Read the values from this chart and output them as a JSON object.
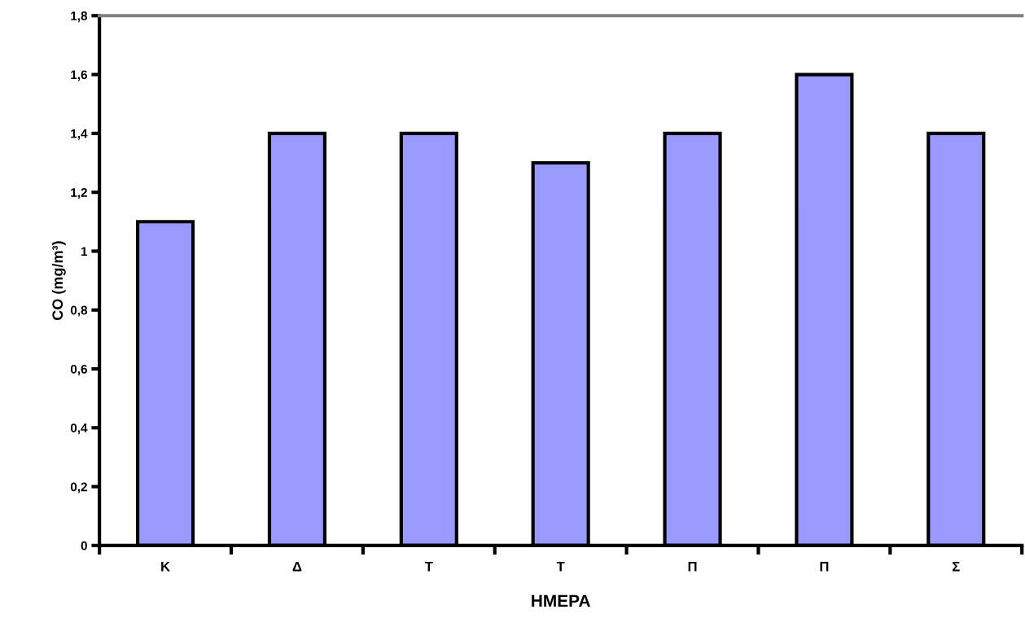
{
  "chart_data": {
    "type": "bar",
    "xlabel": "ΗΜΕΡΑ",
    "ylabel": "CO (mg/m³)",
    "categories": [
      "Κ",
      "Δ",
      "Τ",
      "Τ",
      "Π",
      "Π",
      "Σ"
    ],
    "values": [
      1.1,
      1.4,
      1.4,
      1.3,
      1.4,
      1.6,
      1.4
    ],
    "color": "#9999ff",
    "ylim": [
      0,
      1.8
    ],
    "yticks": [
      0,
      {
        "value": 0.2,
        "label": "0,2"
      },
      {
        "value": 0.4,
        "label": "0,4"
      },
      {
        "value": 0.6,
        "label": "0,6"
      },
      {
        "value": 0.8,
        "label": "0,8"
      },
      1,
      {
        "value": 1.2,
        "label": "1,2"
      },
      {
        "value": 1.4,
        "label": "1,4"
      },
      {
        "value": 1.6,
        "label": "1,6"
      },
      {
        "value": 1.8,
        "label": "1,8"
      }
    ],
    "grid": false,
    "legend": false
  }
}
